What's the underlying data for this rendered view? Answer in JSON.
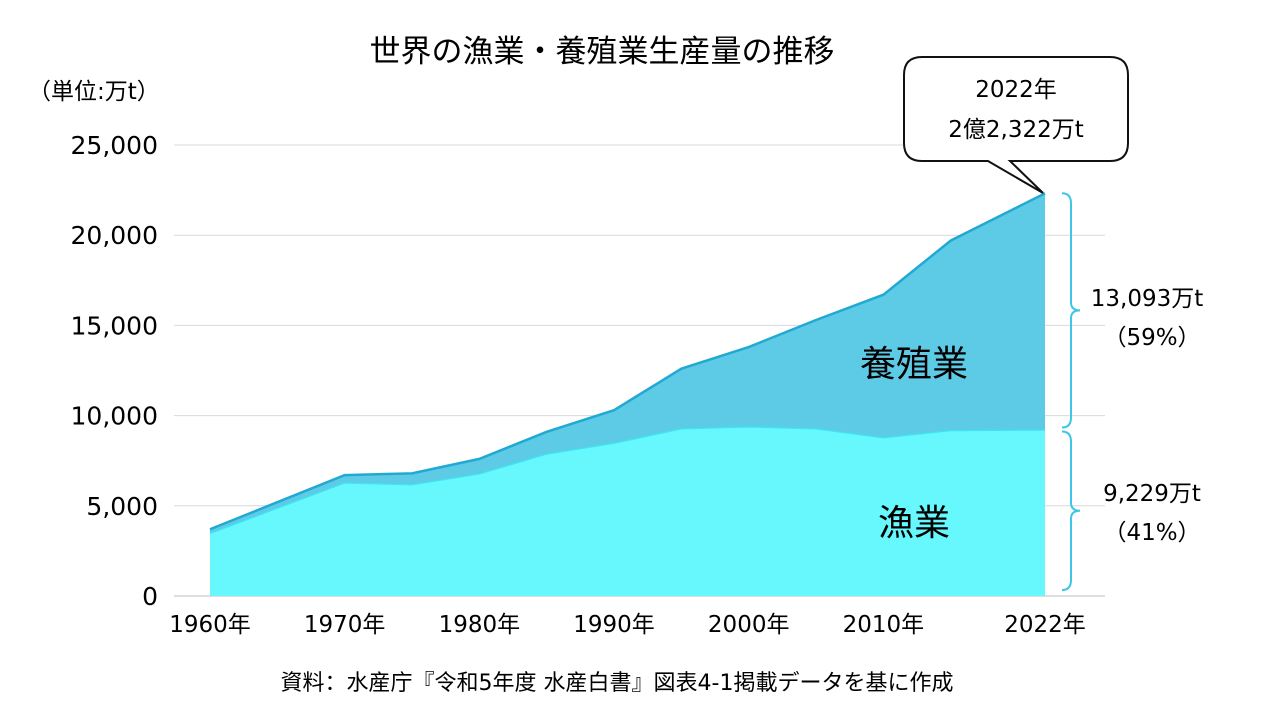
{
  "chart_data": {
    "type": "area",
    "title": "世界の漁業・養殖業生産量の推移",
    "unit_label": "（単位:万t）",
    "source": "資料：水産庁『令和5年度 水産白書』図表4-1掲載データを基に作成",
    "ylim": [
      0,
      25000
    ],
    "yticks": [
      0,
      5000,
      10000,
      15000,
      20000,
      25000
    ],
    "ytick_labels": [
      "0",
      "5,000",
      "10,000",
      "15,000",
      "20,000",
      "25,000"
    ],
    "xlim": [
      1960,
      2022
    ],
    "xtick_labels": [
      "1960年",
      "1970年",
      "1980年",
      "1990年",
      "2000年",
      "2010年",
      "2022年"
    ],
    "x": [
      1960,
      1965,
      1970,
      1975,
      1980,
      1985,
      1990,
      1995,
      2000,
      2005,
      2010,
      2015,
      2022
    ],
    "stacked": true,
    "series": [
      {
        "name": "漁業",
        "color": "#66f8fd",
        "line_color": "#3ee4f2",
        "values": [
          3500,
          4900,
          6300,
          6200,
          6800,
          7900,
          8500,
          9300,
          9400,
          9300,
          8800,
          9200,
          9229
        ]
      },
      {
        "name": "養殖業",
        "color": "#5ecbe6",
        "line_color": "#22a9d3",
        "values": [
          200,
          300,
          400,
          600,
          800,
          1200,
          1800,
          3300,
          4400,
          6000,
          7900,
          10500,
          13093
        ]
      }
    ],
    "grid": true,
    "annotations": {
      "total_callout": [
        "2022年",
        "2億2,322万t"
      ],
      "aquaculture_amount": "13,093万t",
      "aquaculture_share": "（59%）",
      "fishery_amount": "9,229万t",
      "fishery_share": "（41%）"
    }
  }
}
